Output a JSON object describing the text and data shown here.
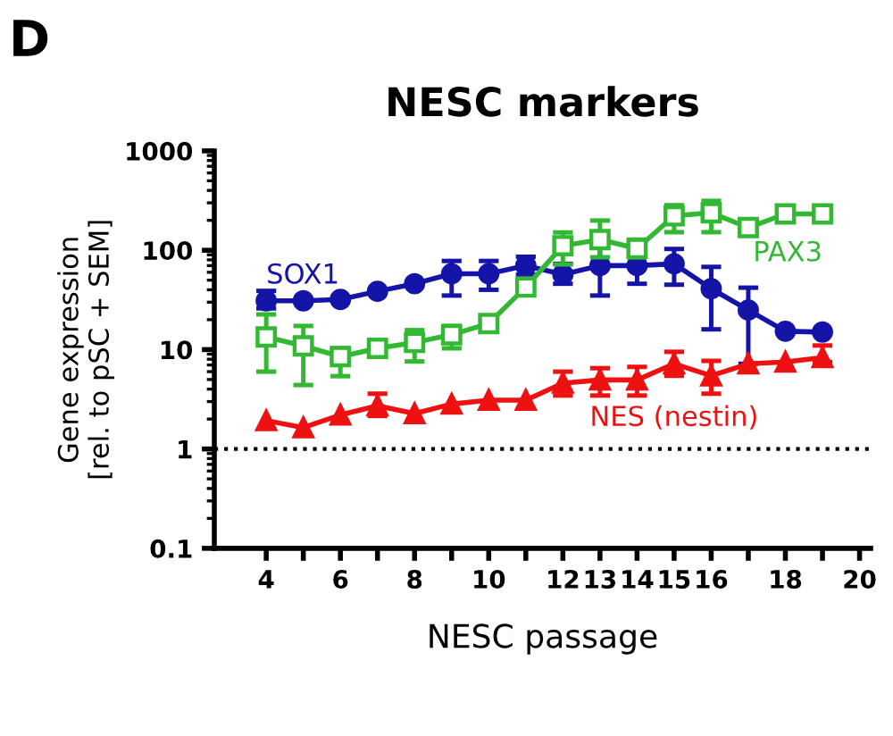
{
  "chart_data": {
    "type": "line",
    "title": "NESC markers",
    "xlabel": "NESC passage",
    "ylabel": "Gene expression\n[rel. to pSC + SEM]",
    "annotations": [
      "D"
    ],
    "x": [
      4,
      5,
      6,
      7,
      8,
      9,
      10,
      11,
      12,
      13,
      14,
      15,
      16,
      17,
      18,
      19
    ],
    "series": [
      {
        "name": "SOX1",
        "color": "#1414a8",
        "marker": "circle",
        "values": [
          31,
          31,
          32,
          38.6,
          46,
          58,
          58,
          70,
          57,
          70,
          70,
          73,
          41,
          25,
          15.3,
          15
        ],
        "errors": [
          [
            26,
            39
          ],
          null,
          null,
          null,
          null,
          [
            35,
            78
          ],
          [
            40,
            78
          ],
          [
            57,
            86
          ],
          [
            46,
            73
          ],
          [
            35,
            109
          ],
          [
            46,
            98
          ],
          [
            45,
            103
          ],
          [
            16,
            68
          ],
          [
            7.2,
            42
          ],
          null,
          null
        ]
      },
      {
        "name": "PAX3",
        "color": "#33b833",
        "marker": "square",
        "values": [
          13.4,
          10.9,
          8.5,
          10.3,
          11.8,
          14.1,
          18.3,
          42.6,
          111,
          128,
          104,
          222,
          238,
          169,
          232,
          232
        ],
        "errors": [
          [
            6,
            22.6
          ],
          [
            4.4,
            17.3
          ],
          [
            5.4,
            10.3
          ],
          null,
          [
            7.6,
            15.7
          ],
          [
            10.3,
            17.3
          ],
          null,
          null,
          [
            72,
            151
          ],
          [
            85,
            199
          ],
          [
            85,
            128
          ],
          [
            152,
            284
          ],
          [
            152,
            314
          ],
          null,
          null,
          null
        ]
      },
      {
        "name": "NES (nestin)",
        "color": "#ee1111",
        "marker": "triangle",
        "values": [
          1.93,
          1.64,
          2.2,
          2.72,
          2.27,
          2.83,
          3.1,
          3.1,
          4.6,
          4.95,
          4.95,
          7.2,
          5.45,
          7.2,
          7.5,
          8.3
        ],
        "errors": [
          null,
          null,
          null,
          [
            2.15,
            3.6
          ],
          null,
          null,
          null,
          null,
          [
            3.45,
            6
          ],
          [
            3.45,
            6.5
          ],
          [
            3.45,
            6.7
          ],
          [
            5.45,
            9.5
          ],
          [
            3.6,
            7.7
          ],
          null,
          null,
          [
            7.5,
            11
          ]
        ]
      }
    ],
    "log": "y",
    "xlim": [
      2.6,
      20.3
    ],
    "ylim": [
      0.1,
      1000
    ],
    "xticks": [
      4,
      {
        "value": 5,
        "label": null
      },
      6,
      {
        "value": 7,
        "label": null
      },
      8,
      {
        "value": 9,
        "label": null
      },
      10,
      {
        "value": 11,
        "label": null
      },
      12,
      13,
      14,
      15,
      16,
      {
        "value": 17,
        "label": null
      },
      18,
      {
        "value": 19,
        "label": null
      },
      20
    ],
    "yticks": [
      {
        "value": 0.1,
        "label": "0.1"
      },
      1,
      10,
      100,
      1000
    ],
    "ref_lines": [
      {
        "axis": "y",
        "value": 1,
        "line_style": "dotted",
        "color": "#000000"
      }
    ],
    "grid": false,
    "legend": false,
    "line_style": "solid"
  }
}
